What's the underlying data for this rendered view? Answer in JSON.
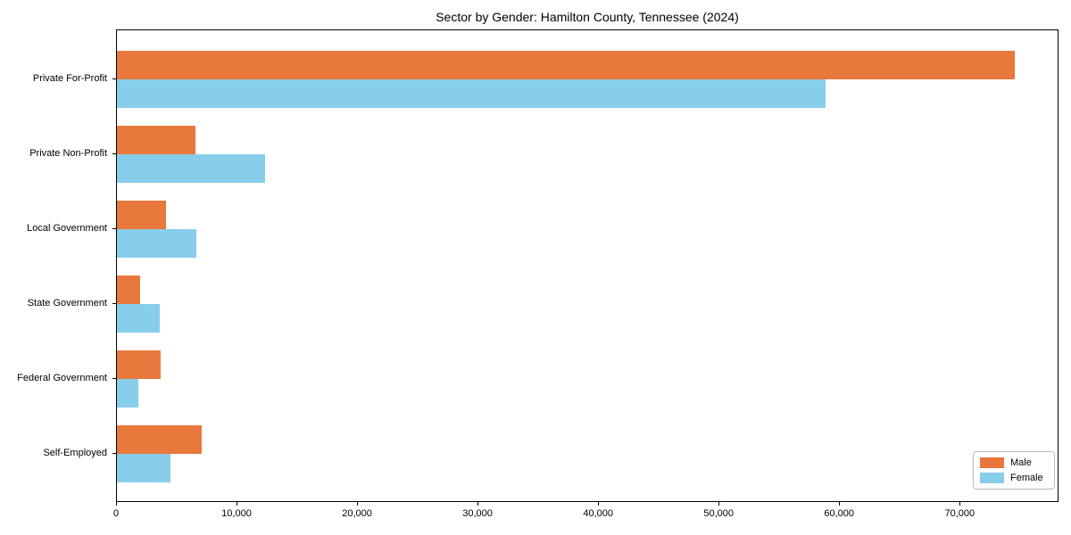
{
  "figure": {
    "background": "#ffffff",
    "spine_color": "#000000"
  },
  "chart_data": {
    "type": "bar",
    "orientation": "horizontal",
    "title": "Sector by Gender: Hamilton County, Tennessee (2024)",
    "categories": [
      "Private For-Profit",
      "Private Non-Profit",
      "Local Government",
      "State Government",
      "Federal Government",
      "Self-Employed"
    ],
    "series": [
      {
        "name": "Male",
        "color": "#e8783c",
        "values": [
          74500,
          6500,
          4100,
          1950,
          3650,
          7050
        ]
      },
      {
        "name": "Female",
        "color": "#87ceeb",
        "values": [
          58800,
          12300,
          6600,
          3550,
          1800,
          4450
        ]
      }
    ],
    "xlim": [
      0,
      78200
    ],
    "x_ticks": [
      0,
      10000,
      20000,
      30000,
      40000,
      50000,
      60000,
      70000
    ],
    "x_tick_labels": [
      "0",
      "10,000",
      "20,000",
      "30,000",
      "40,000",
      "50,000",
      "60,000",
      "70,000"
    ],
    "xlabel": "",
    "ylabel": "",
    "grid": false,
    "legend_position": "lower right"
  },
  "legend": {
    "male_label": "Male",
    "female_label": "Female"
  }
}
